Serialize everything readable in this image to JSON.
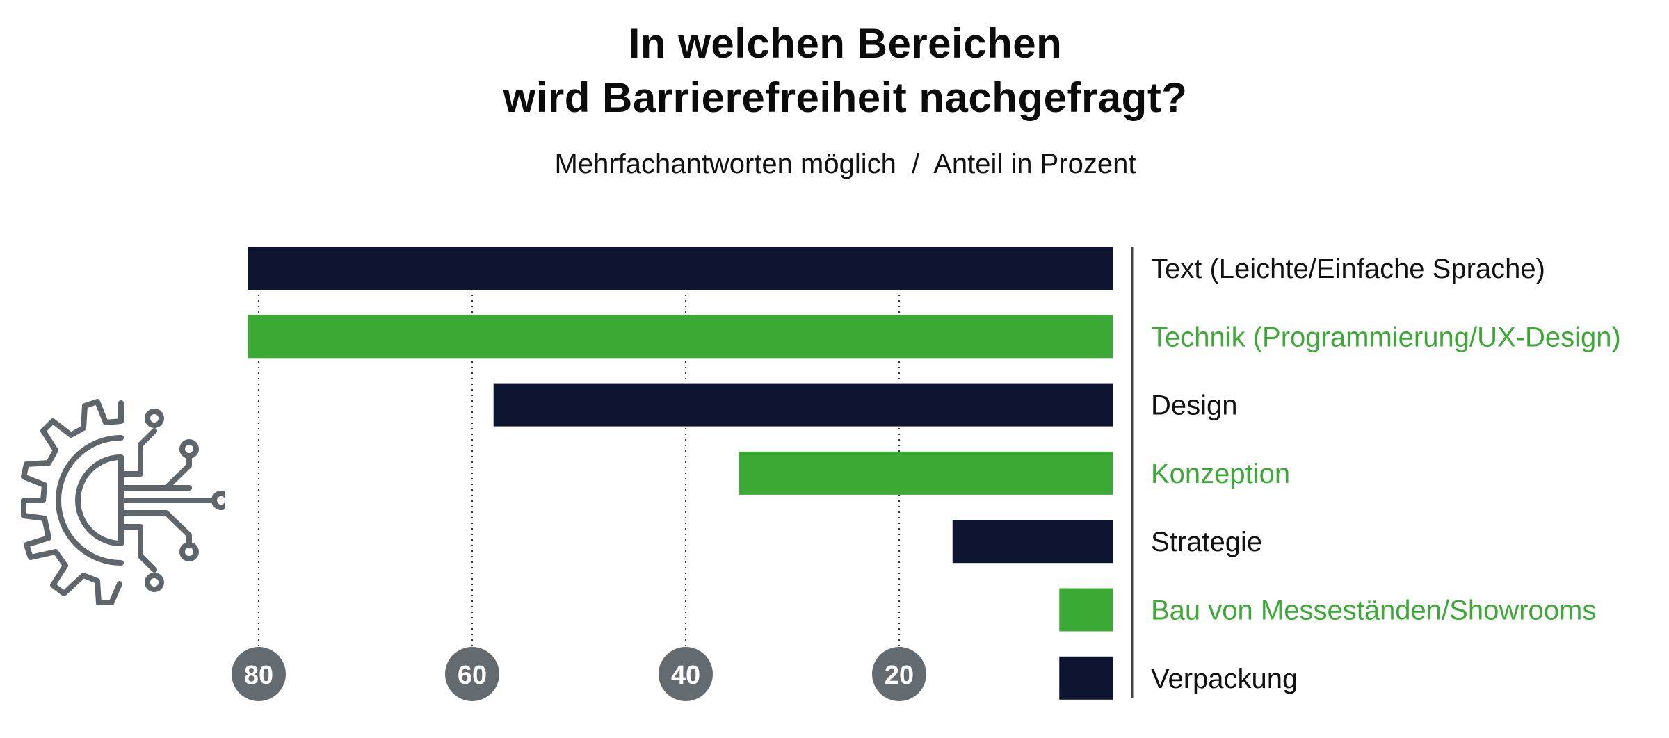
{
  "title_line1": "In welchen Bereichen",
  "title_line2": "wird Barrierefreiheit nachgefragt?",
  "subtitle": "Mehrfachantworten möglich  /  Anteil in Prozent",
  "colors": {
    "navy": "#0e1530",
    "green": "#3aaa35",
    "axis_bubble": "#646b70",
    "icon": "#5e666b"
  },
  "icon": "gear-circuit-icon",
  "chart_data": {
    "type": "bar",
    "orientation": "horizontal",
    "direction": "right-to-left",
    "title": "In welchen Bereichen wird Barrierefreiheit nachgefragt?",
    "subtitle": "Mehrfachantworten möglich  /  Anteil in Prozent",
    "categories": [
      "Text (Leichte/Einfache Sprache)",
      "Technik (Programmierung/UX-Design)",
      "Design",
      "Konzeption",
      "Strategie",
      "Bau von Messeständen/Showrooms",
      "Verpackung"
    ],
    "values": [
      81,
      81,
      58,
      35,
      15,
      5,
      5
    ],
    "bar_colors": [
      "#0e1530",
      "#3aaa35",
      "#0e1530",
      "#3aaa35",
      "#0e1530",
      "#3aaa35",
      "#0e1530"
    ],
    "label_colors": [
      "#111111",
      "#3aaa35",
      "#111111",
      "#3aaa35",
      "#111111",
      "#3aaa35",
      "#111111"
    ],
    "ticks": [
      80,
      60,
      40,
      20
    ],
    "xlim": [
      0,
      81
    ],
    "grid": "dotted vertical"
  }
}
